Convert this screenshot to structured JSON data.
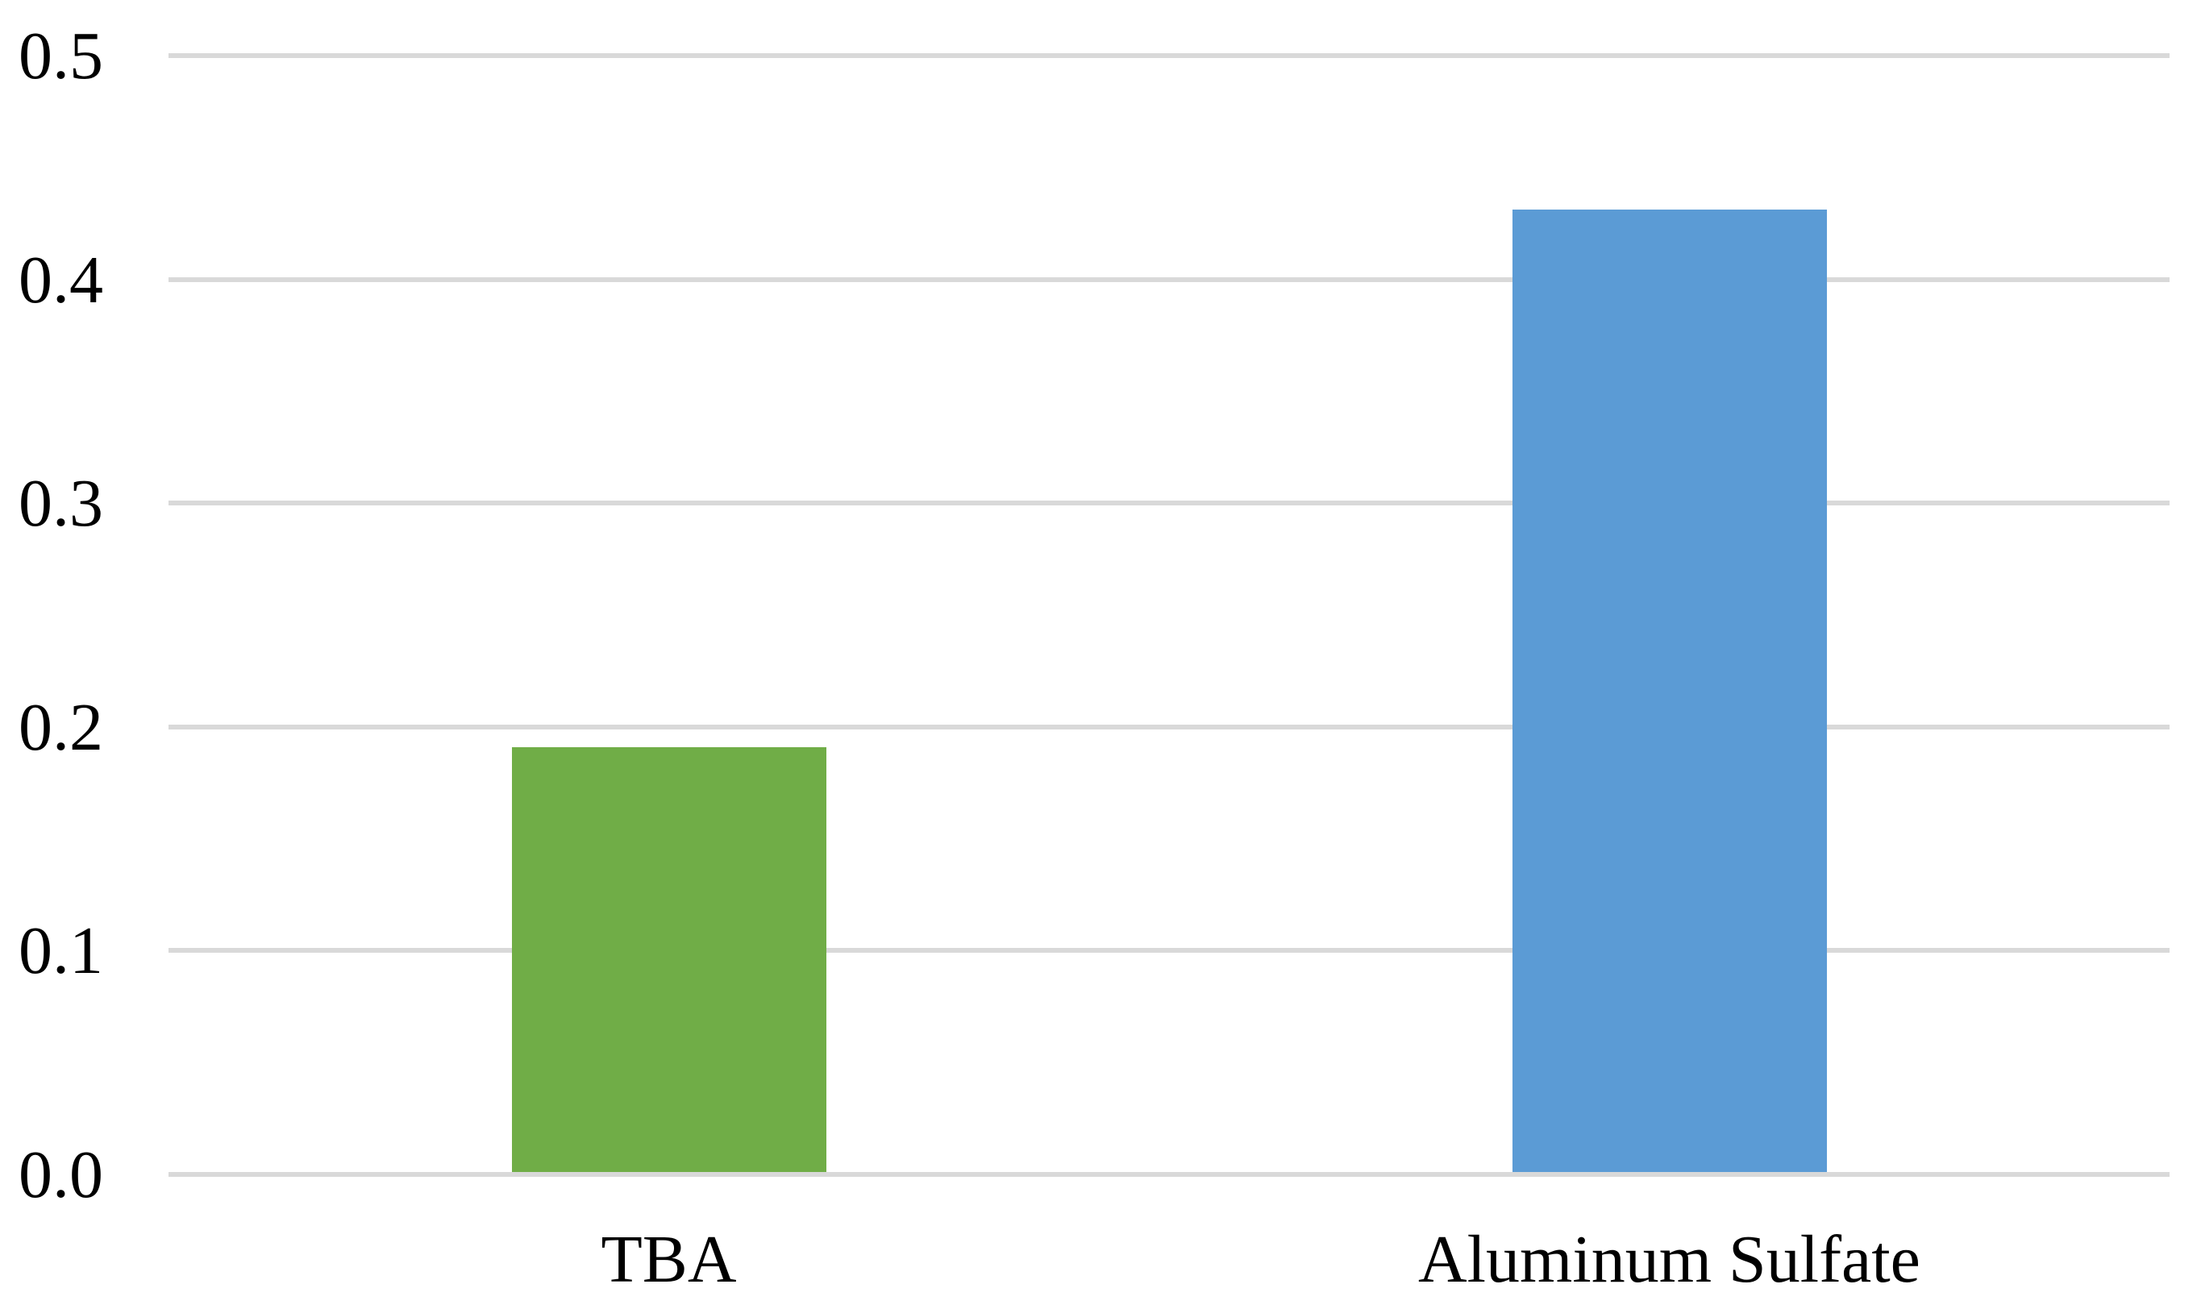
{
  "chart_data": {
    "type": "bar",
    "categories": [
      "TBA",
      "Aluminum Sulfate"
    ],
    "values": [
      0.19,
      0.43
    ],
    "bar_colors": [
      "#70AD47",
      "#5B9BD5"
    ],
    "title": "",
    "xlabel": "",
    "ylabel": "",
    "ylim": [
      0,
      0.5
    ],
    "yticks": [
      0,
      0.1,
      0.2,
      0.3,
      0.4,
      0.5
    ],
    "ytick_labels": [
      "0.0",
      "0.1",
      "0.2",
      "0.3",
      "0.4",
      "0.5"
    ],
    "grid": "horizontal",
    "legend": "none",
    "colors": {
      "gridline": "#D9D9D9",
      "background": "#FFFFFF",
      "text": "#000000"
    }
  }
}
